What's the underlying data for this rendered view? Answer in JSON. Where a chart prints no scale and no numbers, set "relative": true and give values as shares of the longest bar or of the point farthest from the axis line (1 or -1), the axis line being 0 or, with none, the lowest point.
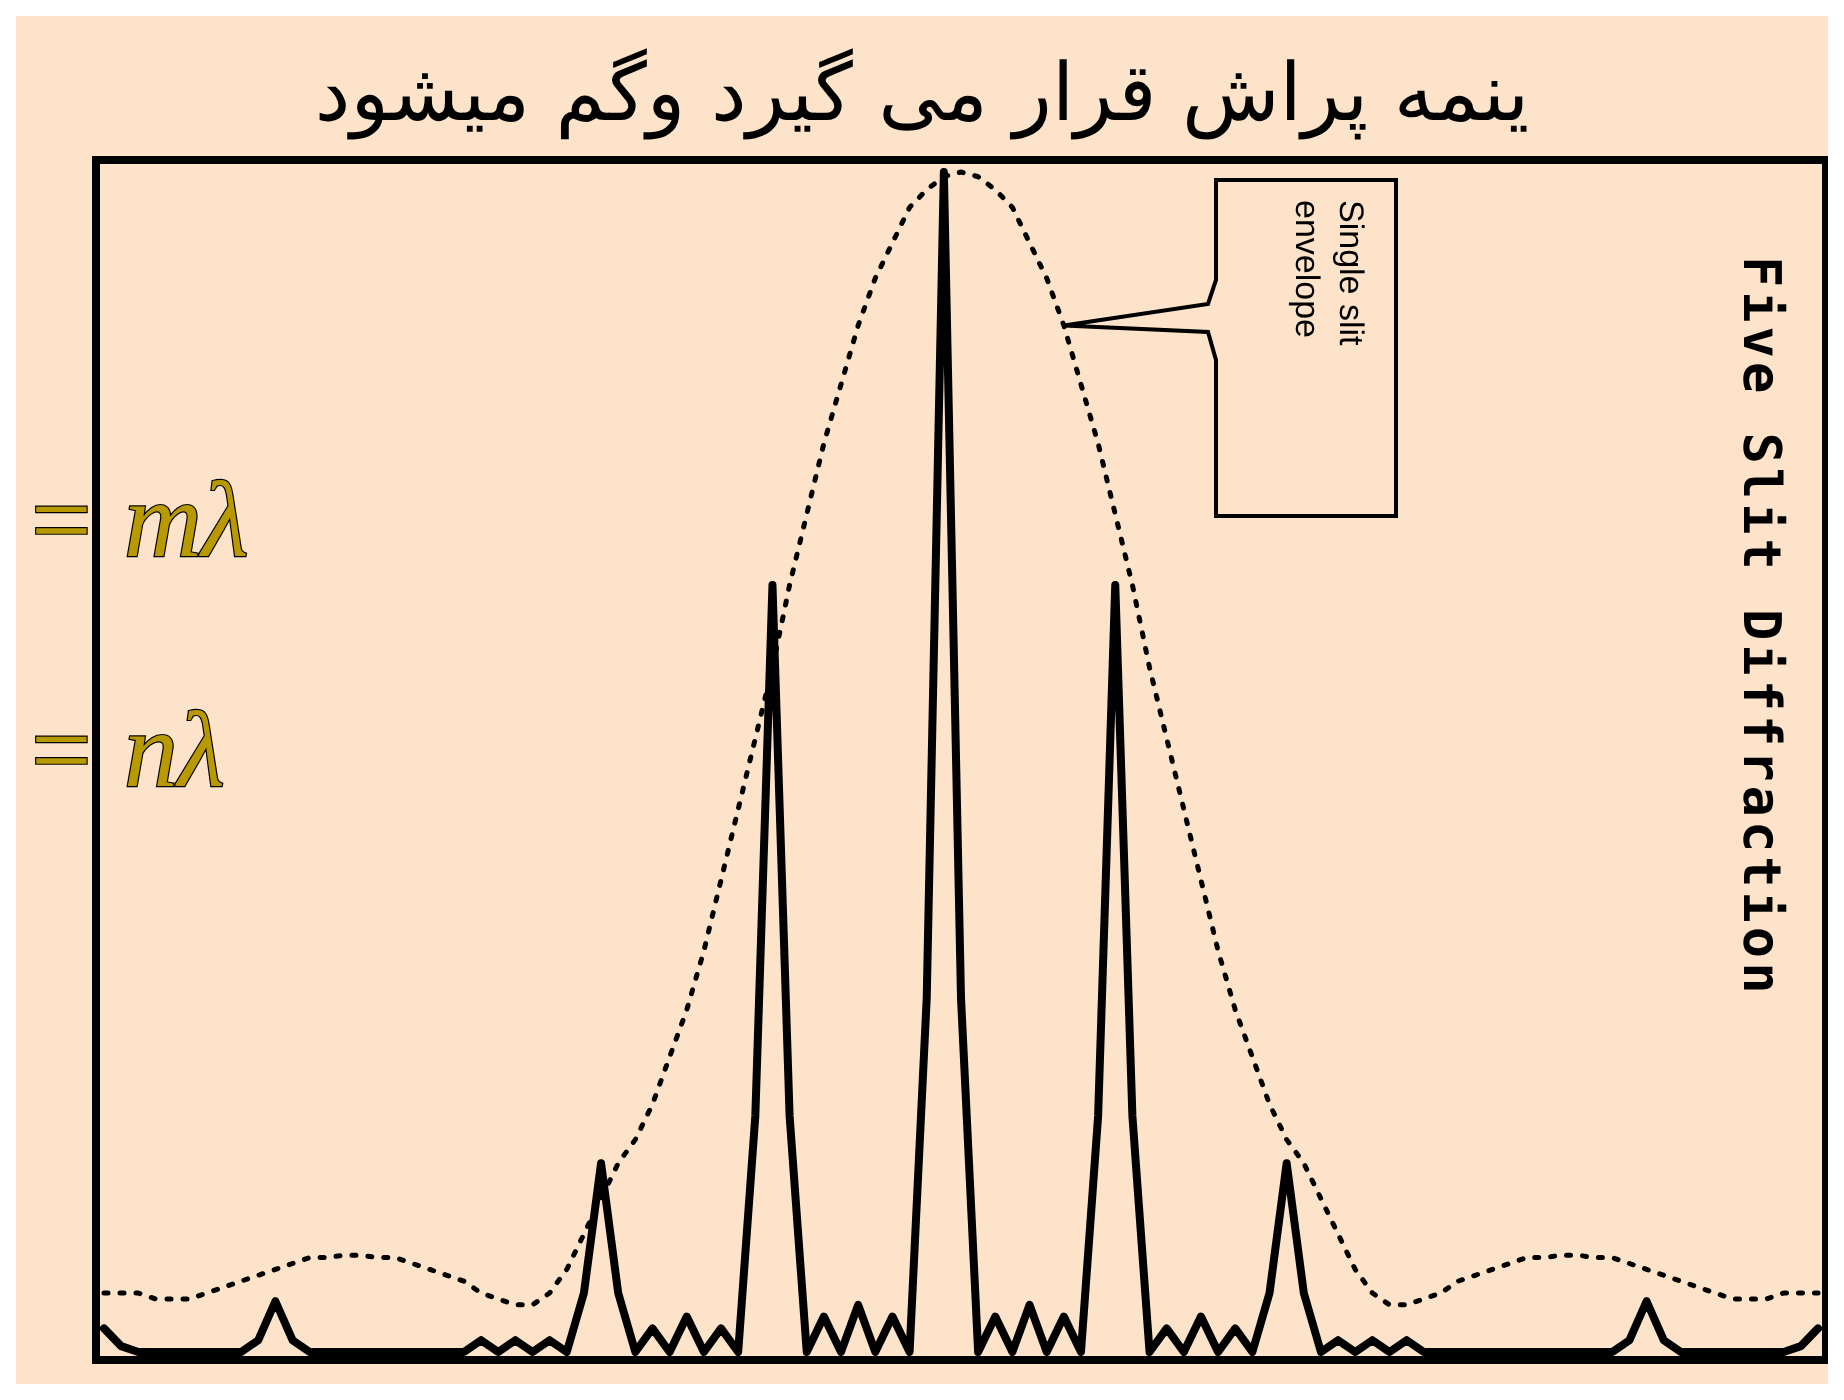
{
  "chart_data": {
    "type": "line",
    "relative": true,
    "title": "ینمه پراش قرار می گیرد وگم میشود",
    "categories": [
      null,
      null,
      null,
      null,
      null,
      null,
      null,
      null,
      null,
      null,
      null,
      null,
      null,
      null,
      null,
      null,
      null,
      null,
      null,
      null,
      null,
      null,
      null,
      null,
      null,
      null,
      null,
      null,
      null,
      null,
      null,
      null,
      null,
      null,
      null,
      null,
      null,
      null,
      null,
      null,
      null,
      null,
      null,
      null,
      null,
      null,
      null,
      null,
      null,
      null,
      null,
      null,
      null,
      null,
      null,
      null,
      null,
      null,
      null,
      null,
      null,
      null,
      null,
      null,
      null,
      null,
      null,
      null,
      null,
      null,
      null,
      null,
      null,
      null,
      null,
      null,
      null,
      null,
      null,
      null,
      null,
      null,
      null,
      null,
      null,
      null,
      null,
      null,
      null,
      null,
      null,
      null,
      null,
      null,
      null,
      null,
      null,
      null,
      null,
      null,
      null
    ],
    "series": [
      {
        "color": "#000000",
        "line_style": "dotted",
        "values": [
          0.05,
          0.05,
          0.05,
          0.045,
          0.045,
          0.045,
          0.05,
          0.055,
          0.06,
          0.065,
          0.07,
          0.075,
          0.08,
          0.08,
          0.082,
          0.082,
          0.08,
          0.08,
          0.075,
          0.07,
          0.065,
          0.06,
          0.05,
          0.045,
          0.04,
          0.04,
          0.05,
          0.07,
          0.1,
          0.13,
          0.16,
          0.18,
          0.21,
          0.25,
          0.29,
          0.34,
          0.4,
          0.46,
          0.52,
          0.58,
          0.65,
          0.71,
          0.77,
          0.82,
          0.87,
          0.91,
          0.94,
          0.97,
          0.985,
          0.996,
          1.0,
          0.996,
          0.985,
          0.97,
          0.94,
          0.91,
          0.87,
          0.82,
          0.77,
          0.71,
          0.65,
          0.58,
          0.52,
          0.46,
          0.4,
          0.34,
          0.29,
          0.25,
          0.21,
          0.18,
          0.16,
          0.13,
          0.1,
          0.07,
          0.05,
          0.04,
          0.04,
          0.045,
          0.05,
          0.06,
          0.065,
          0.07,
          0.075,
          0.08,
          0.08,
          0.082,
          0.082,
          0.08,
          0.08,
          0.075,
          0.07,
          0.065,
          0.06,
          0.055,
          0.05,
          0.045,
          0.045,
          0.045,
          0.05,
          0.05,
          0.05
        ]
      },
      {
        "color": "#000000",
        "line_style": "solid",
        "values": [
          0.02,
          0.005,
          0,
          0,
          0,
          0,
          0,
          0,
          0,
          0.01,
          0.043,
          0.01,
          0,
          0,
          0,
          0,
          0,
          0,
          0,
          0,
          0,
          0,
          0.01,
          0,
          0.01,
          0,
          0.01,
          0,
          0.05,
          0.16,
          0.05,
          0,
          0.02,
          0,
          0.03,
          0,
          0.02,
          0,
          0.2,
          0.65,
          0.2,
          0,
          0.03,
          0,
          0.04,
          0,
          0.03,
          0,
          0.3,
          1.0,
          0.3,
          0,
          0.03,
          0,
          0.04,
          0,
          0.03,
          0,
          0.2,
          0.65,
          0.2,
          0,
          0.02,
          0,
          0.03,
          0,
          0.02,
          0,
          0.05,
          0.16,
          0.05,
          0,
          0.01,
          0,
          0.01,
          0,
          0.01,
          0,
          0,
          0,
          0,
          0,
          0,
          0,
          0,
          0,
          0,
          0,
          0,
          0.01,
          0.043,
          0.01,
          0,
          0,
          0,
          0,
          0,
          0,
          0,
          0.005,
          0.02
        ]
      }
    ],
    "annotations": [
      "= mλ",
      "= nλ",
      "Single slit envelope",
      "Five Slit Diffraction"
    ],
    "grid": false
  }
}
